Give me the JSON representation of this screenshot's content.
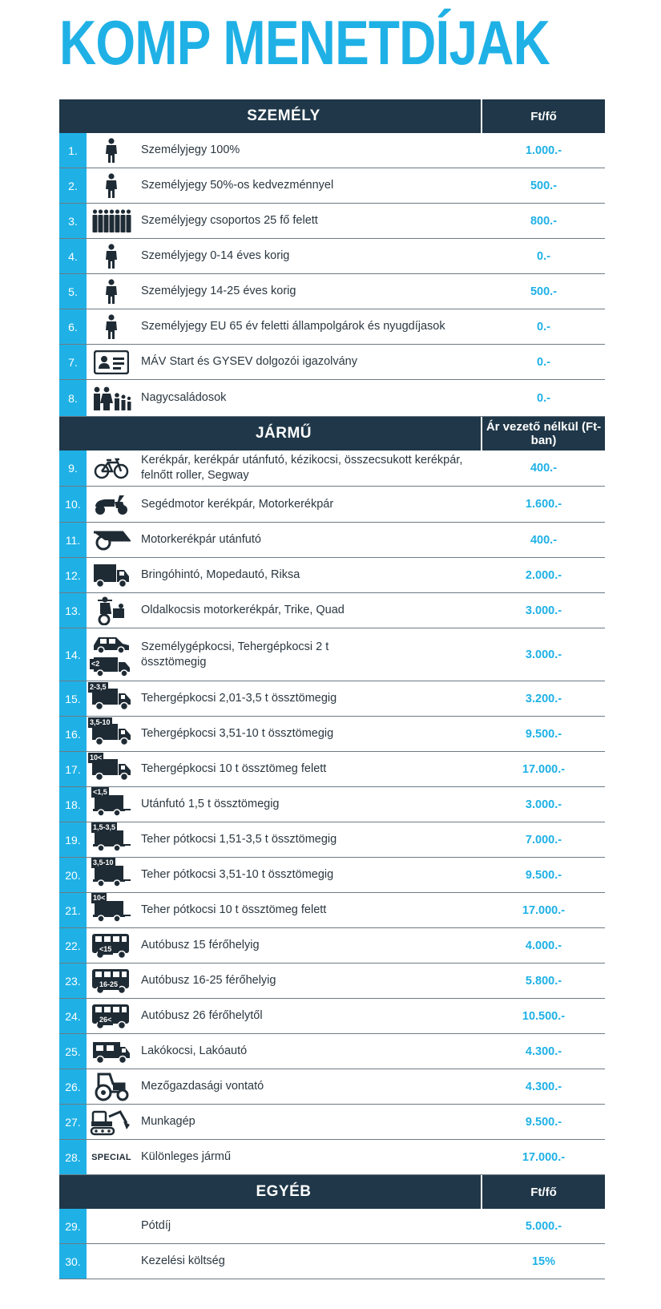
{
  "title": "KOMP MENETDÍJAK",
  "colors": {
    "accent": "#1fb1e6",
    "header_bg": "#1f3748",
    "icon": "#1f2b34"
  },
  "sections": {
    "szemely": {
      "title": "SZEMÉLY",
      "price_header": "Ft/fő",
      "rows": [
        {
          "num": "1.",
          "icon": "person-icon",
          "desc": "Személyjegy 100%",
          "price": "1.000.-"
        },
        {
          "num": "2.",
          "icon": "person-icon",
          "desc": "Személyjegy 50%-os kedvezménnyel",
          "price": "500.-"
        },
        {
          "num": "3.",
          "icon": "group-icon",
          "desc": "Személyjegy csoportos 25 fő felett",
          "price": "800.-"
        },
        {
          "num": "4.",
          "icon": "person-icon",
          "desc": "Személyjegy 0-14 éves korig",
          "price": "0.-"
        },
        {
          "num": "5.",
          "icon": "person-icon",
          "desc": "Személyjegy 14-25 éves korig",
          "price": "500.-"
        },
        {
          "num": "6.",
          "icon": "person-icon",
          "desc": "Személyjegy EU 65 év feletti állampolgárok és nyugdíjasok",
          "price": "0.-"
        },
        {
          "num": "7.",
          "icon": "id-card-icon",
          "desc": "MÁV Start és GYSEV dolgozói igazolvány",
          "price": "0.-"
        },
        {
          "num": "8.",
          "icon": "family-icon",
          "desc": "Nagycsaládosok",
          "price": "0.-"
        }
      ]
    },
    "jarmu": {
      "title": "JÁRMŰ",
      "price_header": "Ár vezető nélkül (Ft-ban)",
      "rows": [
        {
          "num": "9.",
          "icon": "bicycle-icon",
          "desc": "Kerékpár, kerékpár utánfutó, kézikocsi, összecsukott kerékpár, felnőtt roller, Segway",
          "price": "400.-"
        },
        {
          "num": "10.",
          "icon": "scooter-icon",
          "desc": "Segédmotor kerékpár, Motorkerékpár",
          "price": "1.600.-"
        },
        {
          "num": "11.",
          "icon": "moto-trailer-icon",
          "desc": "Motorkerékpár utánfutó",
          "price": "400.-"
        },
        {
          "num": "12.",
          "icon": "small-van-icon",
          "desc": "Bringóhintó, Mopedautó, Riksa",
          "price": "2.000.-"
        },
        {
          "num": "13.",
          "icon": "sidecar-icon",
          "desc": "Oldalkocsis motorkerékpár, Trike, Quad",
          "price": "3.000.-"
        },
        {
          "num": "14.",
          "icon": "car-truck-icon",
          "badge": "<2",
          "desc": "Személygépkocsi, Tehergépkocsi 2 t össztömegig",
          "price": "3.000.-"
        },
        {
          "num": "15.",
          "icon": "truck-icon",
          "badge": "2-3,5",
          "desc": "Tehergépkocsi 2,01-3,5 t össztömegig",
          "price": "3.200.-"
        },
        {
          "num": "16.",
          "icon": "truck-icon",
          "badge": "3,5-10",
          "desc": "Tehergépkocsi 3,51-10 t össztömegig",
          "price": "9.500.-"
        },
        {
          "num": "17.",
          "icon": "truck-icon",
          "badge": "10<",
          "desc": "Tehergépkocsi 10 t össztömeg felett",
          "price": "17.000.-"
        },
        {
          "num": "18.",
          "icon": "trailer-icon",
          "badge": "<1,5",
          "desc": "Utánfutó 1,5 t össztömegig",
          "price": "3.000.-"
        },
        {
          "num": "19.",
          "icon": "trailer-icon",
          "badge": "1,5-3,5",
          "desc": "Teher pótkocsi 1,51-3,5 t össztömegig",
          "price": "7.000.-"
        },
        {
          "num": "20.",
          "icon": "trailer-icon",
          "badge": "3,5-10",
          "desc": "Teher pótkocsi 3,51-10 t össztömegig",
          "price": "9.500.-"
        },
        {
          "num": "21.",
          "icon": "trailer-icon",
          "badge": "10<",
          "desc": "Teher pótkocsi 10 t össztömeg felett",
          "price": "17.000.-"
        },
        {
          "num": "22.",
          "icon": "bus-icon",
          "badge": "<15",
          "desc": "Autóbusz 15 férőhelyig",
          "price": "4.000.-"
        },
        {
          "num": "23.",
          "icon": "bus-icon",
          "badge": "16-25",
          "desc": "Autóbusz 16-25 férőhelyig",
          "price": "5.800.-"
        },
        {
          "num": "24.",
          "icon": "bus-icon",
          "badge": "26<",
          "desc": "Autóbusz 26 férőhelytől",
          "price": "10.500.-"
        },
        {
          "num": "25.",
          "icon": "camper-icon",
          "desc": "Lakókocsi, Lakóautó",
          "price": "4.300.-"
        },
        {
          "num": "26.",
          "icon": "tractor-icon",
          "desc": "Mezőgazdasági vontató",
          "price": "4.300.-"
        },
        {
          "num": "27.",
          "icon": "excavator-icon",
          "desc": "Munkagép",
          "price": "9.500.-"
        },
        {
          "num": "28.",
          "icon": "special-label",
          "special": "SPECIAL",
          "desc": "Különleges jármű",
          "price": "17.000.-"
        }
      ]
    },
    "egyeb": {
      "title": "EGYÉB",
      "price_header": "Ft/fő",
      "rows": [
        {
          "num": "29.",
          "desc": "Pótdíj",
          "price": "5.000.-"
        },
        {
          "num": "30.",
          "desc": "Kezelési költség",
          "price": "15%"
        }
      ]
    }
  }
}
